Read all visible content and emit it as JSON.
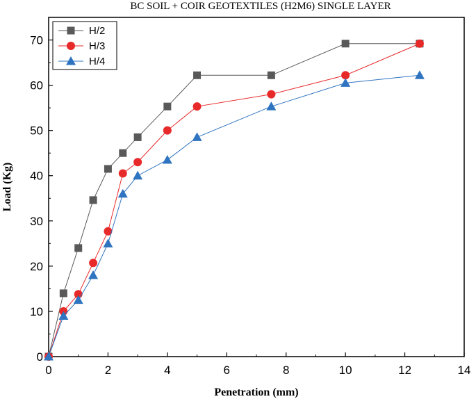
{
  "chart_data": {
    "type": "line",
    "title": "BC SOIL + COIR GEOTEXTILES (H2M6) SINGLE LAYER",
    "xlabel": "Penetration (mm)",
    "ylabel": "Load (Kg)",
    "xlim": [
      0,
      14
    ],
    "ylim": [
      0,
      75
    ],
    "xticks": [
      0,
      2,
      4,
      6,
      8,
      10,
      12,
      14
    ],
    "yticks": [
      0,
      10,
      20,
      30,
      40,
      50,
      60,
      70
    ],
    "grid": false,
    "legend_position": "top-left",
    "x": [
      0,
      0.5,
      1,
      1.5,
      2,
      2.5,
      3,
      4,
      5,
      7.5,
      10,
      12.5
    ],
    "series": [
      {
        "name": "H/2",
        "color": "#595959",
        "marker": "square",
        "values": [
          0,
          14,
          24,
          34.6,
          41.5,
          45,
          48.5,
          55.3,
          62.2,
          62.2,
          69.2,
          69.2
        ]
      },
      {
        "name": "H/3",
        "color": "#e8292a",
        "marker": "circle",
        "values": [
          0,
          10,
          13.8,
          20.7,
          27.7,
          40.5,
          43,
          50,
          55.3,
          58,
          62.2,
          69.2
        ]
      },
      {
        "name": "H/4",
        "color": "#2f74c0",
        "marker": "triangle",
        "values": [
          0,
          9,
          12.5,
          18,
          25,
          36,
          40,
          43.5,
          48.5,
          55.3,
          60.5,
          62.2
        ]
      }
    ]
  }
}
